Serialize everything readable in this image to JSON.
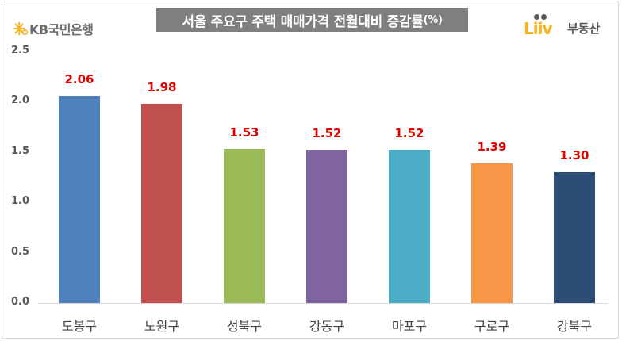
{
  "header": {
    "left_logo": "KB국민은행",
    "title": "서울 주요구 주택 매매가격 전월대비 증감률",
    "title_unit": "(%)",
    "right_logo_word": "Liiv",
    "right_logo_text": "부동산"
  },
  "chart_data": {
    "type": "bar",
    "title": "서울 주요구 주택 매매가격 전월대비 증감률(%)",
    "xlabel": "",
    "ylabel": "",
    "categories": [
      "도봉구",
      "노원구",
      "성북구",
      "강동구",
      "마포구",
      "구로구",
      "강북구"
    ],
    "values": [
      2.06,
      1.98,
      1.53,
      1.52,
      1.52,
      1.39,
      1.3
    ],
    "value_labels": [
      "2.06",
      "1.98",
      "1.53",
      "1.52",
      "1.52",
      "1.39",
      "1.30"
    ],
    "colors": [
      "#4f81bd",
      "#c0504d",
      "#9bbb59",
      "#8064a2",
      "#4bacc6",
      "#f79646",
      "#2c4d75"
    ],
    "label_color": "#e00000",
    "ylim": [
      0,
      2.5
    ],
    "yticks": [
      "0.0",
      "0.5",
      "1.0",
      "1.5",
      "2.0",
      "2.5"
    ],
    "grid": false,
    "legend": "none"
  }
}
